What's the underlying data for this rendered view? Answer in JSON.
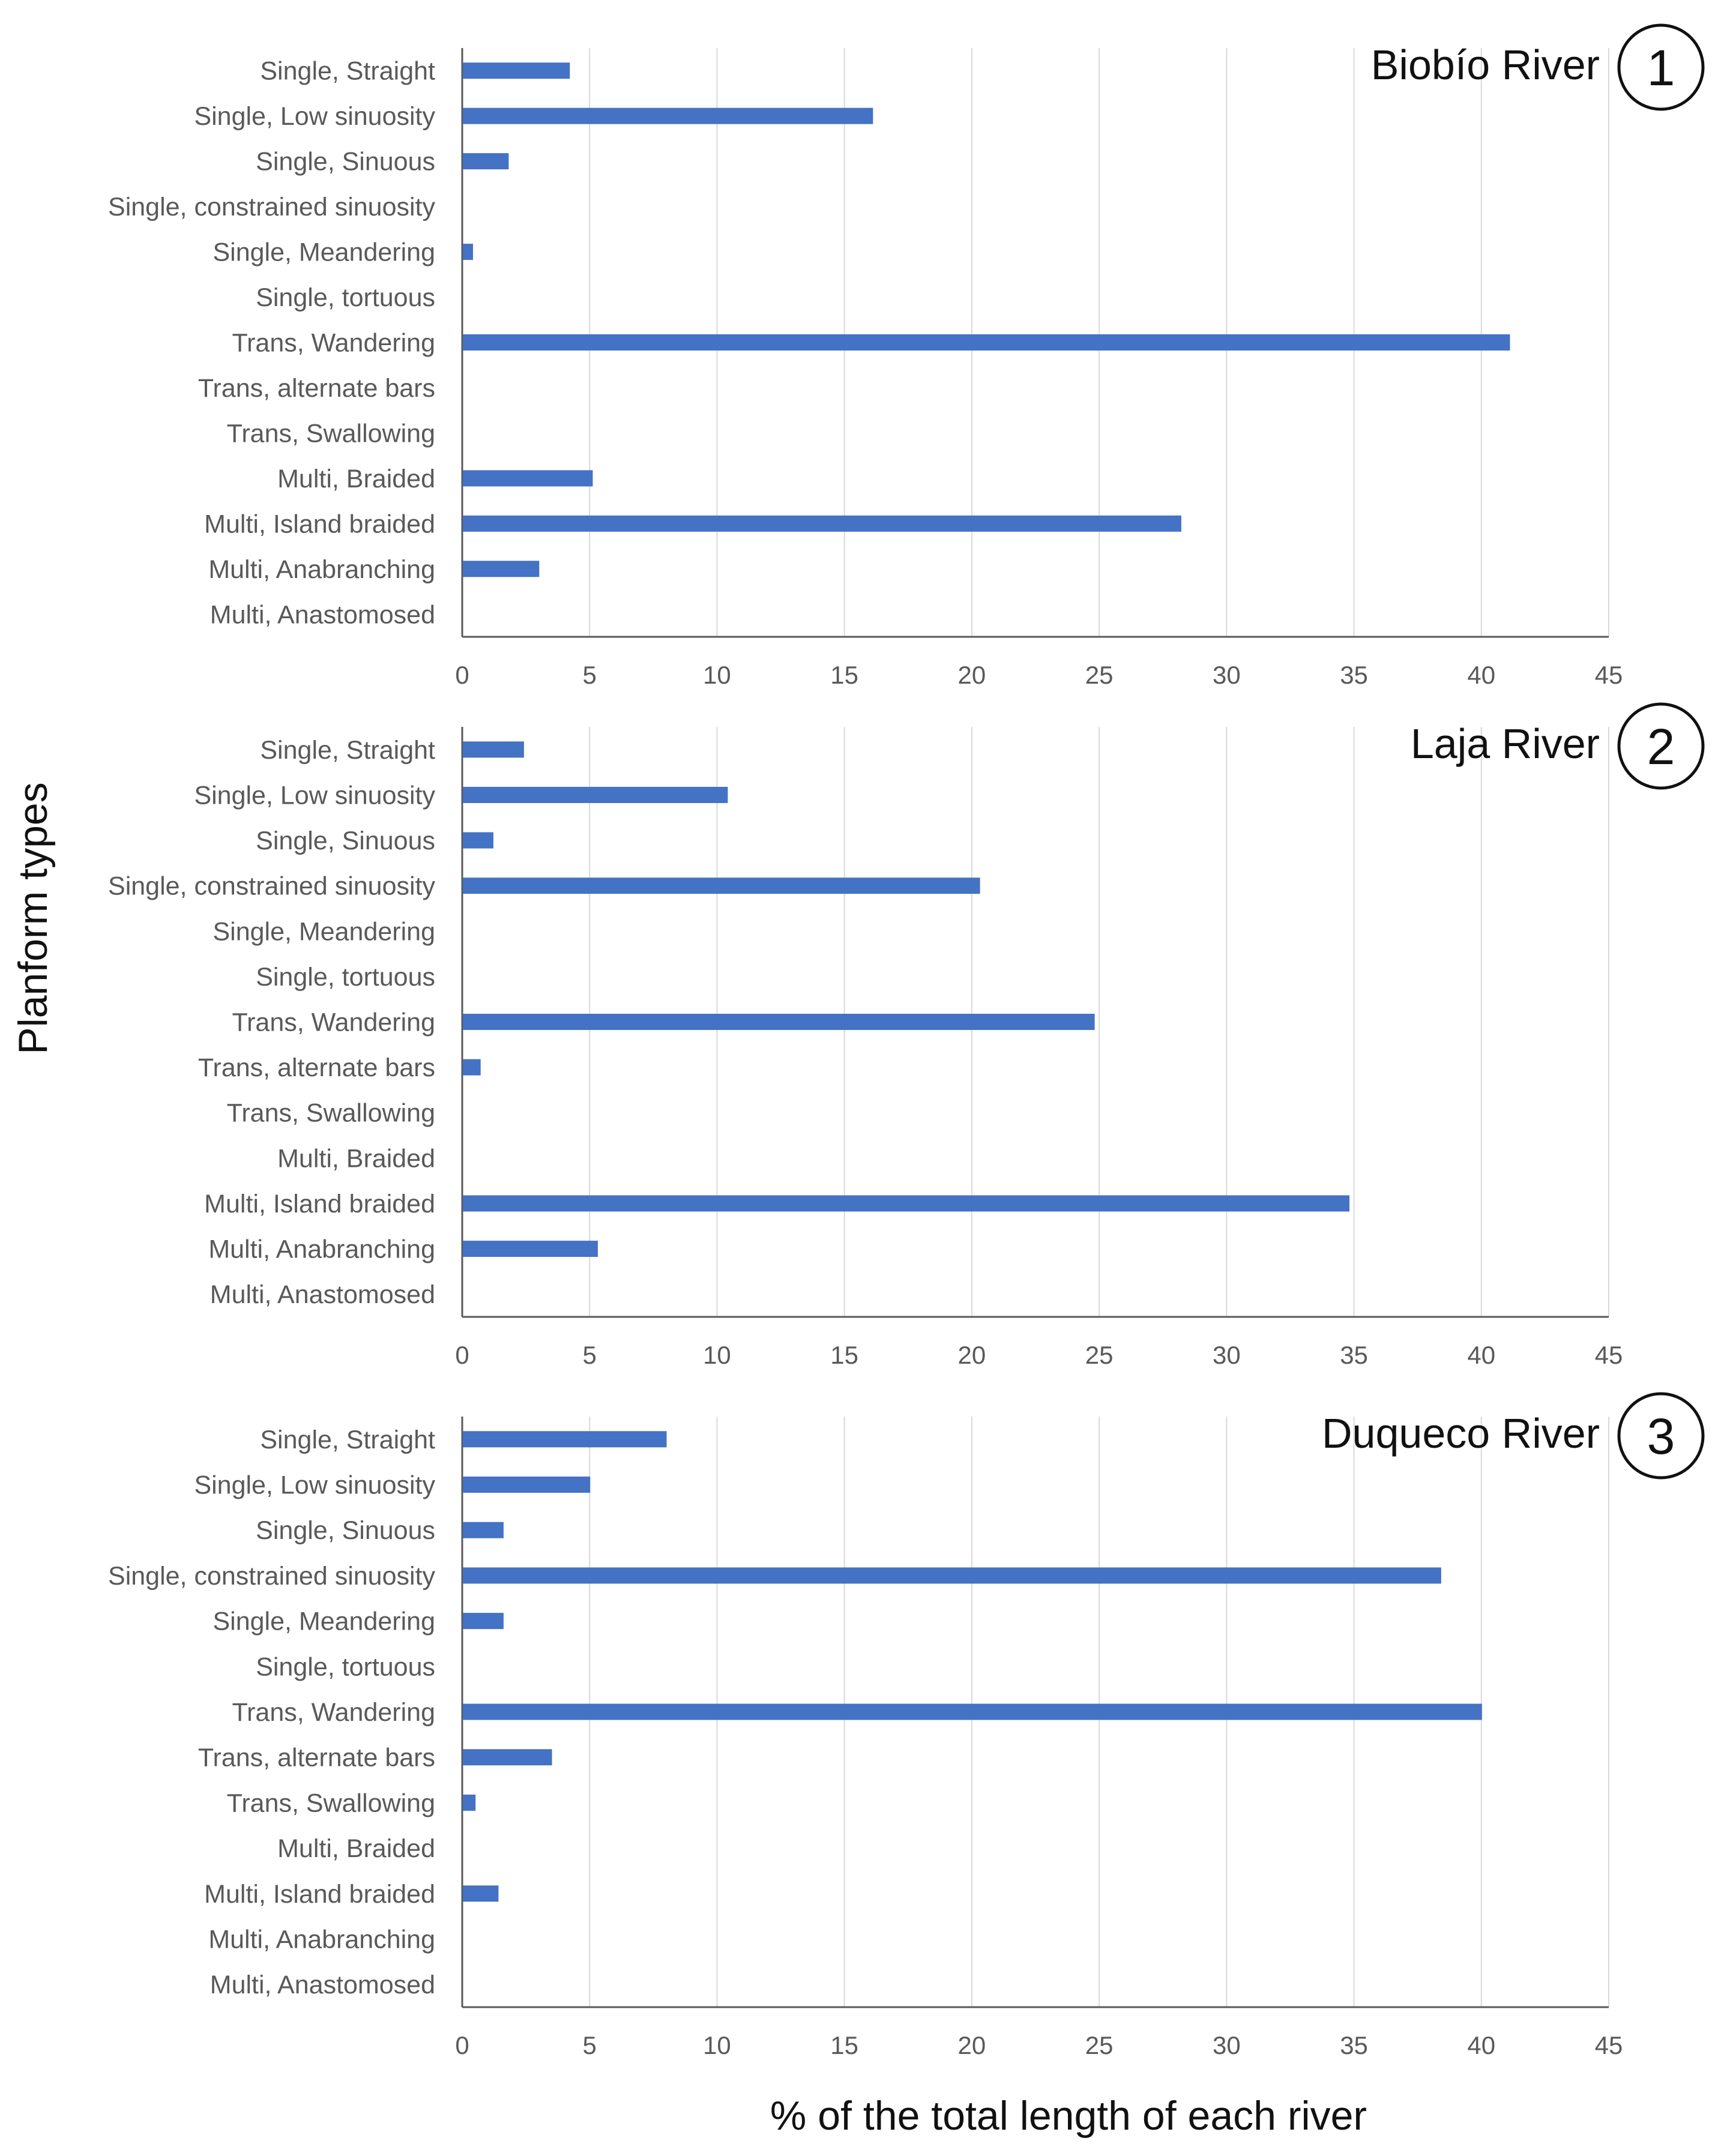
{
  "axis_titles": {
    "y": "Planform types",
    "x": "% of the total length of each river"
  },
  "colors": {
    "bar": "#4472C4",
    "grid": "#D9D9D9",
    "axis": "#595959"
  },
  "chart_data": [
    {
      "type": "bar",
      "orientation": "horizontal",
      "title": "Biobío River",
      "badge": "1",
      "xlabel": "% of the total length of each river",
      "ylabel": "Planform types",
      "xlim": [
        0,
        45
      ],
      "xticks": [
        "0",
        "5",
        "10",
        "15",
        "20",
        "25",
        "30",
        "35",
        "40",
        "45"
      ],
      "grid": true,
      "categories": [
        "Single, Straight",
        "Single, Low sinuosity",
        "Single, Sinuous",
        "Single, constrained sinuosity",
        "Single, Meandering",
        "Single, tortuous",
        "Trans, Wandering",
        "Trans, alternate bars",
        "Trans, Swallowing",
        "Multi, Braided",
        "Multi, Island braided",
        "Multi, Anabranching",
        "Multi, Anastomosed"
      ],
      "values": [
        4.2,
        16.1,
        1.8,
        0,
        0.4,
        0,
        41.1,
        0,
        0,
        5.1,
        28.2,
        3.0,
        0
      ]
    },
    {
      "type": "bar",
      "orientation": "horizontal",
      "title": "Laja River",
      "badge": "2",
      "xlabel": "% of the total length of each river",
      "ylabel": "Planform types",
      "xlim": [
        0,
        45
      ],
      "xticks": [
        "0",
        "5",
        "10",
        "15",
        "20",
        "25",
        "30",
        "35",
        "40",
        "45"
      ],
      "grid": true,
      "categories": [
        "Single, Straight",
        "Single, Low sinuosity",
        "Single, Sinuous",
        "Single, constrained sinuosity",
        "Single, Meandering",
        "Single, tortuous",
        "Trans, Wandering",
        "Trans, alternate bars",
        "Trans, Swallowing",
        "Multi, Braided",
        "Multi, Island braided",
        "Multi, Anabranching",
        "Multi, Anastomosed"
      ],
      "values": [
        2.4,
        10.4,
        1.2,
        20.3,
        0,
        0,
        24.8,
        0.7,
        0,
        0,
        34.8,
        5.3,
        0
      ]
    },
    {
      "type": "bar",
      "orientation": "horizontal",
      "title": "Duqueco River",
      "badge": "3",
      "xlabel": "% of the total length of each river",
      "ylabel": "Planform types",
      "xlim": [
        0,
        45
      ],
      "xticks": [
        "0",
        "5",
        "10",
        "15",
        "20",
        "25",
        "30",
        "35",
        "40",
        "45"
      ],
      "grid": true,
      "categories": [
        "Single, Straight",
        "Single, Low sinuosity",
        "Single, Sinuous",
        "Single, constrained sinuosity",
        "Single, Meandering",
        "Single, tortuous",
        "Trans, Wandering",
        "Trans, alternate bars",
        "Trans, Swallowing",
        "Multi, Braided",
        "Multi, Island braided",
        "Multi, Anabranching",
        "Multi, Anastomosed"
      ],
      "values": [
        8.0,
        5.0,
        1.6,
        38.4,
        1.6,
        0,
        40.0,
        3.5,
        0.5,
        0,
        1.4,
        0,
        0
      ]
    }
  ]
}
